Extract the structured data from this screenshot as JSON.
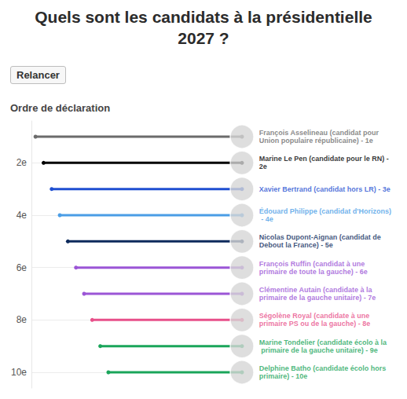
{
  "chart_data": {
    "type": "lollipop",
    "title": "Quels sont les candidats à la présidentielle 2027 ?",
    "button_label": "Relancer",
    "subtitle": "Ordre de déclaration",
    "orientation": "horizontal",
    "labels": [
      "François Asselineau (candidat pour Union populaire républicaine) - 1e",
      "Marine Le Pen (candidate pour le RN) - 2e",
      "Xavier Bertrand (candidat hors LR) - 3e",
      "Édouard Philippe (candidat d'Horizons) - 4e",
      "Nicolas Dupont-Aignan (candidat de Debout la France) - 5e",
      "François Ruffin (candidat à une primaire de toute la gauche) - 6e",
      "Clémentine Autain (candidate à la primaire de la gauche unitaire) - 7e",
      "Ségolène Royal (candidate à une primaire PS ou de la gauche) - 8e",
      "Marine Tondelier (candidate écolo à la primaire de la gauche unitaire) - 9e",
      "Delphine Batho (candidate écolo hors primaire) - 10e"
    ],
    "y": [
      1,
      2,
      3,
      4,
      5,
      6,
      7,
      8,
      9,
      10
    ],
    "values": [
      0.5,
      1.5,
      2.5,
      3.5,
      4.5,
      5.5,
      6.5,
      7.5,
      8.5,
      9.5
    ],
    "colors": [
      "#6b6b6b",
      "#000000",
      "#1f4fd1",
      "#4a9de6",
      "#0d2a5c",
      "#9b55d6",
      "#9b55d6",
      "#e8508a",
      "#1aa55a",
      "#1aa55a"
    ],
    "xlim": [
      0,
      26
    ],
    "ylim": [
      0.4,
      10.6
    ],
    "yticks": [
      {
        "value": 2,
        "label": "2e"
      },
      {
        "value": 4,
        "label": "4e"
      },
      {
        "value": 6,
        "label": "6e"
      },
      {
        "value": 8,
        "label": "8e"
      },
      {
        "value": 10,
        "label": "10e"
      }
    ],
    "grid": true,
    "tick_labels": "y"
  }
}
